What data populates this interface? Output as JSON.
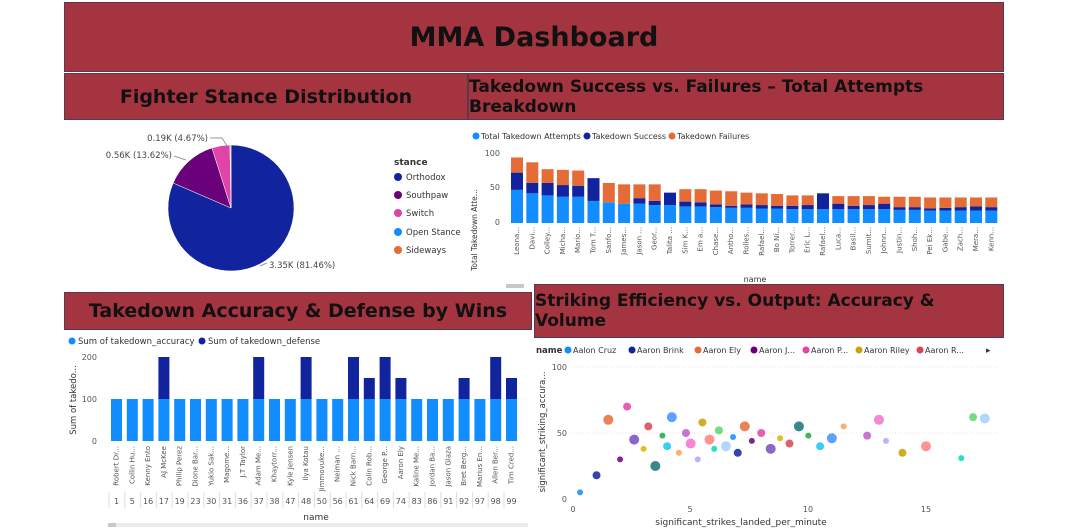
{
  "dashboard": {
    "title": "MMA Dashboard"
  },
  "colors": {
    "banner": "#a4343f",
    "orthodox": "#12239e",
    "southpaw": "#6b007b",
    "switch": "#e044a7",
    "open_stance": "#118dff",
    "sideways": "#e66c37",
    "total": "#118dff",
    "success": "#12239e",
    "failures": "#e66c37",
    "accuracy": "#118dff",
    "defense": "#12239e"
  },
  "panels": {
    "stance": {
      "title": "Fighter Stance Distribution",
      "legend_title": "stance",
      "legend": [
        "Orthodox",
        "Southpaw",
        "Switch",
        "Open Stance",
        "Sideways"
      ],
      "slice_labels": [
        "3.35K (81.46%)",
        "0.56K (13.62%)",
        "0.19K (4.67%)"
      ]
    },
    "takedown": {
      "title": "Takedown Success vs. Failures – Total Attempts Breakdown",
      "legend": [
        "Total Takedown Attempts",
        "Takedown Success",
        "Takedown Failures"
      ],
      "ylabel": "Total Takedown Atte...",
      "xlabel": "name",
      "yticks": [
        "0",
        "50",
        "100"
      ]
    },
    "accuracy": {
      "title": "Takedown Accuracy & Defense by Wins",
      "legend": [
        "Sum of takedown_accuracy",
        "Sum of takedown_defense"
      ],
      "ylabel": "Sum of takedo...",
      "xlabel": "name",
      "yticks": [
        "0",
        "100",
        "200"
      ]
    },
    "striking": {
      "title": "Striking Efficiency vs. Output: Accuracy & Volume",
      "legend_title": "name",
      "legend": [
        "Aalon Cruz",
        "Aaron Brink",
        "Aaron Ely",
        "Aaron J...",
        "Aaron P...",
        "Aaron Riley",
        "Aaron R..."
      ],
      "legend_colors": [
        "#118dff",
        "#12239e",
        "#e66c37",
        "#6b007b",
        "#e044a7",
        "#c8a400",
        "#d64550"
      ],
      "xlabel": "significant_strikes_landed_per_minute",
      "ylabel": "significant_striking_accura...",
      "xticks": [
        "0",
        "5",
        "10",
        "15"
      ],
      "yticks": [
        "0",
        "50",
        "100"
      ]
    }
  },
  "chart_data": [
    {
      "type": "pie",
      "title": "Fighter Stance Distribution",
      "labels": [
        "Orthodox",
        "Southpaw",
        "Switch",
        "Open Stance",
        "Sideways"
      ],
      "values": [
        3350,
        560,
        190,
        8,
        3
      ],
      "percent_labels": [
        "81.46%",
        "13.62%",
        "4.67%"
      ],
      "legend_position": "right"
    },
    {
      "type": "bar",
      "stacked": true,
      "title": "Takedown Success vs. Failures – Total Attempts Breakdown",
      "xlabel": "name",
      "ylabel": "Total Takedown Atte...",
      "ylim": [
        0,
        110
      ],
      "categories": [
        "Leona...",
        "Davi...",
        "Colley...",
        "Micha...",
        "Mario...",
        "Tom T...",
        "Sanfo...",
        "James...",
        "Jason ...",
        "Geor...",
        "Talita ...",
        "Sim K...",
        "Em a...",
        "Chase...",
        "Antho...",
        "Rolles...",
        "Rafael...",
        "Bo Ni...",
        "Torrer...",
        "Eric L...",
        "Rafael...",
        "Luca...",
        "Basil...",
        "Sumit...",
        "Johnn...",
        "Justin...",
        "Shoh...",
        "Pei Ek...",
        "Gabe...",
        "Zach...",
        "Mera...",
        "Kenn..."
      ],
      "series": [
        {
          "name": "Total Takedown Attempts",
          "values": [
            48,
            43,
            40,
            38,
            38,
            32,
            30,
            28,
            28,
            26,
            26,
            24,
            24,
            23,
            22,
            22,
            21,
            21,
            20,
            20,
            20,
            20,
            20,
            20,
            20,
            19,
            19,
            18,
            18,
            18,
            18,
            18
          ]
        },
        {
          "name": "Takedown Success",
          "values": [
            25,
            15,
            18,
            17,
            16,
            33,
            0,
            0,
            8,
            6,
            18,
            7,
            6,
            4,
            3,
            5,
            5,
            4,
            5,
            6,
            23,
            8,
            5,
            6,
            8,
            4,
            4,
            3,
            4,
            5,
            6,
            5
          ]
        },
        {
          "name": "Takedown Failures",
          "values": [
            22,
            30,
            20,
            22,
            22,
            0,
            28,
            28,
            20,
            24,
            0,
            18,
            19,
            20,
            21,
            17,
            17,
            17,
            15,
            14,
            0,
            11,
            14,
            13,
            10,
            15,
            15,
            16,
            15,
            14,
            13,
            14
          ]
        }
      ],
      "legend_position": "top-left"
    },
    {
      "type": "bar",
      "stacked": true,
      "title": "Takedown Accuracy & Defense by Wins",
      "xlabel": "name",
      "ylabel": "Sum of takedo...",
      "ylim": [
        0,
        200
      ],
      "categories": [
        "Robert Dr...",
        "Collin Hu...",
        "Kenny Ento",
        "AJ McKee",
        "Philip Perez",
        "Dione Bar...",
        "Yukio Sak...",
        "Magome...",
        "J.T Taylor",
        "Adam Me...",
        "Khaytorr...",
        "Kyle Jensen",
        "Ilya Kotau",
        "Jimmovuke...",
        "Neiman ...",
        "Nick Barn...",
        "Colin Rob...",
        "George P...",
        "Aaron Ely",
        "Kaline Me...",
        "Jordan Ba...",
        "Jason Glaza",
        "Bret Berg...",
        "Marius En...",
        "Allen Ber...",
        "Tim Cred..."
      ],
      "wins": [
        "1",
        "5",
        "16",
        "17",
        "19",
        "23",
        "30",
        "31",
        "36",
        "37",
        "38",
        "47",
        "48",
        "50",
        "56",
        "61",
        "64",
        "69",
        "74",
        "83",
        "86",
        "91",
        "92",
        "97",
        "98",
        "99"
      ],
      "series": [
        {
          "name": "Sum of takedown_accuracy",
          "values": [
            100,
            100,
            100,
            100,
            100,
            100,
            100,
            100,
            100,
            100,
            100,
            100,
            100,
            100,
            100,
            100,
            100,
            100,
            100,
            100,
            100,
            100,
            100,
            100,
            100,
            100
          ]
        },
        {
          "name": "Sum of takedown_defense",
          "values": [
            0,
            0,
            0,
            100,
            0,
            0,
            0,
            0,
            0,
            100,
            0,
            0,
            100,
            0,
            0,
            100,
            50,
            100,
            50,
            0,
            0,
            0,
            50,
            0,
            100,
            50
          ]
        }
      ],
      "legend_position": "top-left"
    },
    {
      "type": "scatter",
      "title": "Striking Efficiency vs. Output: Accuracy & Volume",
      "xlabel": "significant_strikes_landed_per_minute",
      "ylabel": "significant_striking_accura...",
      "xlim": [
        0,
        18
      ],
      "ylim": [
        0,
        100
      ],
      "points": [
        [
          0.3,
          5
        ],
        [
          1.0,
          18
        ],
        [
          1.5,
          60
        ],
        [
          2.0,
          30
        ],
        [
          2.3,
          70
        ],
        [
          2.6,
          45
        ],
        [
          3.0,
          38
        ],
        [
          3.2,
          55
        ],
        [
          3.5,
          25
        ],
        [
          3.8,
          48
        ],
        [
          4.0,
          40
        ],
        [
          4.2,
          62
        ],
        [
          4.5,
          35
        ],
        [
          4.8,
          50
        ],
        [
          5.0,
          42
        ],
        [
          5.3,
          30
        ],
        [
          5.5,
          58
        ],
        [
          5.8,
          45
        ],
        [
          6.0,
          38
        ],
        [
          6.2,
          52
        ],
        [
          6.5,
          40
        ],
        [
          6.8,
          47
        ],
        [
          7.0,
          35
        ],
        [
          7.3,
          55
        ],
        [
          7.6,
          44
        ],
        [
          8.0,
          50
        ],
        [
          8.4,
          38
        ],
        [
          8.8,
          46
        ],
        [
          9.2,
          42
        ],
        [
          9.6,
          55
        ],
        [
          10.0,
          48
        ],
        [
          10.5,
          40
        ],
        [
          11.0,
          46
        ],
        [
          11.5,
          55
        ],
        [
          12.5,
          48
        ],
        [
          13.0,
          60
        ],
        [
          13.3,
          44
        ],
        [
          14.0,
          35
        ],
        [
          15.0,
          40
        ],
        [
          16.5,
          31
        ],
        [
          17.0,
          62
        ],
        [
          17.5,
          61
        ]
      ],
      "legend_position": "top-left"
    }
  ]
}
